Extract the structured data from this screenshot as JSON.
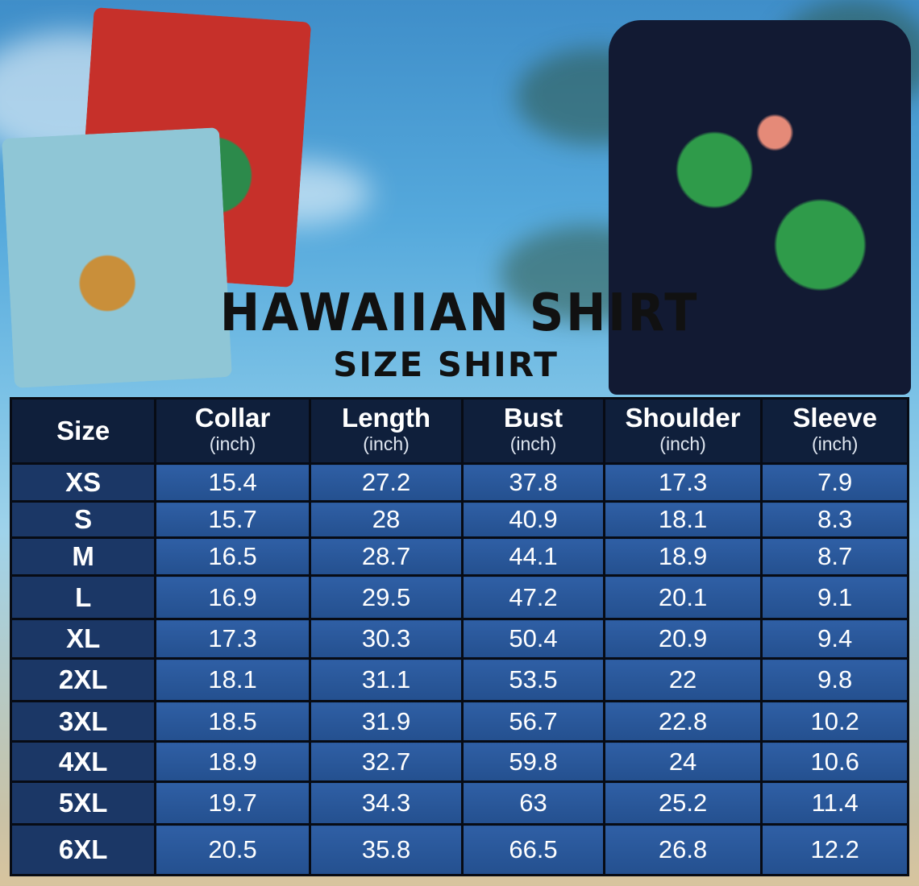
{
  "title": "HAWAIIAN SHIRT",
  "subtitle": "SIZE SHIRT",
  "colors": {
    "header_bg": "#0f1f3b",
    "cell_bg": "#2f5fa5",
    "size_cell_bg": "#1b3766",
    "title": "#111111"
  },
  "table": {
    "headers": [
      {
        "label": "Size",
        "unit": ""
      },
      {
        "label": "Collar",
        "unit": "(inch)"
      },
      {
        "label": "Length",
        "unit": "(inch)"
      },
      {
        "label": "Bust",
        "unit": "(inch)"
      },
      {
        "label": "Shoulder",
        "unit": "(inch)"
      },
      {
        "label": "Sleeve",
        "unit": "(inch)"
      }
    ],
    "rows": [
      [
        "XS",
        "15.4",
        "27.2",
        "37.8",
        "17.3",
        "7.9"
      ],
      [
        "S",
        "15.7",
        "28",
        "40.9",
        "18.1",
        "8.3"
      ],
      [
        "M",
        "16.5",
        "28.7",
        "44.1",
        "18.9",
        "8.7"
      ],
      [
        "L",
        "16.9",
        "29.5",
        "47.2",
        "20.1",
        "9.1"
      ],
      [
        "XL",
        "17.3",
        "30.3",
        "50.4",
        "20.9",
        "9.4"
      ],
      [
        "2XL",
        "18.1",
        "31.1",
        "53.5",
        "22",
        "9.8"
      ],
      [
        "3XL",
        "18.5",
        "31.9",
        "56.7",
        "22.8",
        "10.2"
      ],
      [
        "4XL",
        "18.9",
        "32.7",
        "59.8",
        "24",
        "10.6"
      ],
      [
        "5XL",
        "19.7",
        "34.3",
        "63",
        "25.2",
        "11.4"
      ],
      [
        "6XL",
        "20.5",
        "35.8",
        "66.5",
        "26.8",
        "12.2"
      ]
    ]
  }
}
